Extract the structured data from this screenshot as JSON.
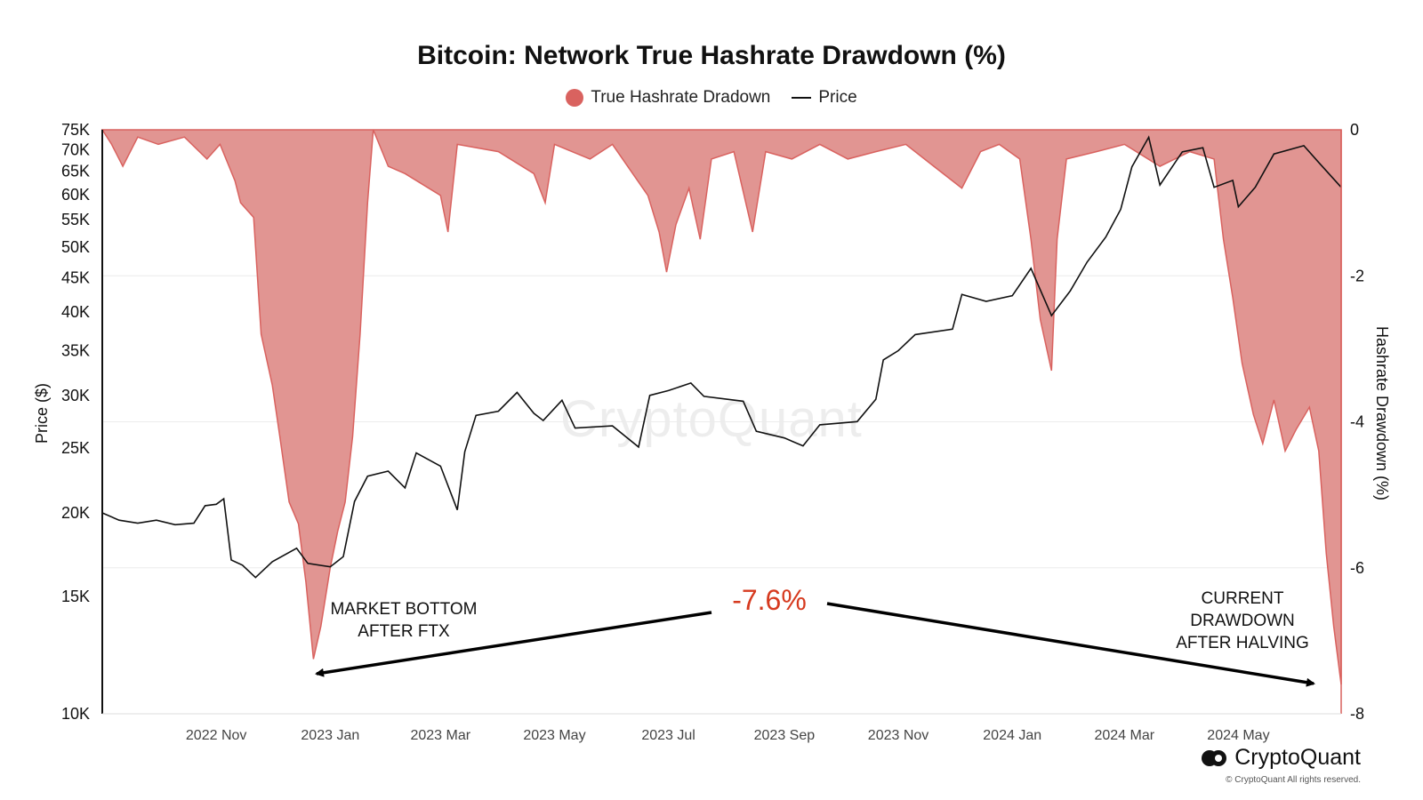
{
  "chart_data": {
    "type": "area+line",
    "title": "Bitcoin: Network True Hashrate Drawdown (%)",
    "legend": [
      "True Hashrate Dradown",
      "Price"
    ],
    "legend_position": "top-center",
    "left_axis": {
      "label": "Price ($)",
      "scale": "log",
      "range": [
        10000,
        75000
      ],
      "ticks": [
        10000,
        15000,
        20000,
        25000,
        30000,
        35000,
        40000,
        45000,
        50000,
        55000,
        60000,
        65000,
        70000,
        75000
      ],
      "tick_labels": [
        "10K",
        "15K",
        "20K",
        "25K",
        "30K",
        "35K",
        "40K",
        "45K",
        "50K",
        "55K",
        "60K",
        "65K",
        "70K",
        "75K"
      ]
    },
    "right_axis": {
      "label": "Hashrate Drawdown (%)",
      "range": [
        -8,
        0
      ],
      "ticks": [
        0,
        -2,
        -4,
        -6,
        -8
      ]
    },
    "x_axis": {
      "range": [
        "2022-09-01",
        "2024-06-25"
      ],
      "ticks": [
        "2022-11-01",
        "2023-01-01",
        "2023-03-01",
        "2023-05-01",
        "2023-07-01",
        "2023-09-01",
        "2023-11-01",
        "2024-01-01",
        "2024-03-01",
        "2024-05-01"
      ],
      "tick_labels": [
        "2022 Nov",
        "2023 Jan",
        "2023 Mar",
        "2023 May",
        "2023 Jul",
        "2023 Sep",
        "2023 Nov",
        "2024 Jan",
        "2024 Mar",
        "2024 May"
      ]
    },
    "grid": "horizontal",
    "colors": {
      "drawdown": "#d9625f",
      "drawdown_fill": "#e19592",
      "price": "#111111",
      "annotation": "#d63a1f"
    },
    "series": [
      {
        "name": "Price",
        "axis": "left",
        "points": [
          [
            "2022-09-01",
            20000
          ],
          [
            "2022-09-10",
            19500
          ],
          [
            "2022-09-20",
            19300
          ],
          [
            "2022-09-30",
            19500
          ],
          [
            "2022-10-10",
            19200
          ],
          [
            "2022-10-20",
            19300
          ],
          [
            "2022-10-26",
            20500
          ],
          [
            "2022-11-01",
            20600
          ],
          [
            "2022-11-05",
            21000
          ],
          [
            "2022-11-09",
            17000
          ],
          [
            "2022-11-15",
            16700
          ],
          [
            "2022-11-22",
            16000
          ],
          [
            "2022-12-01",
            16900
          ],
          [
            "2022-12-14",
            17700
          ],
          [
            "2022-12-20",
            16800
          ],
          [
            "2023-01-01",
            16600
          ],
          [
            "2023-01-08",
            17200
          ],
          [
            "2023-01-14",
            20800
          ],
          [
            "2023-01-21",
            22700
          ],
          [
            "2023-02-01",
            23100
          ],
          [
            "2023-02-10",
            21800
          ],
          [
            "2023-02-16",
            24600
          ],
          [
            "2023-03-01",
            23500
          ],
          [
            "2023-03-10",
            20200
          ],
          [
            "2023-03-14",
            24700
          ],
          [
            "2023-03-20",
            28000
          ],
          [
            "2023-04-01",
            28400
          ],
          [
            "2023-04-11",
            30300
          ],
          [
            "2023-04-20",
            28200
          ],
          [
            "2023-04-25",
            27500
          ],
          [
            "2023-05-05",
            29500
          ],
          [
            "2023-05-12",
            26800
          ],
          [
            "2023-06-01",
            27000
          ],
          [
            "2023-06-15",
            25100
          ],
          [
            "2023-06-21",
            30000
          ],
          [
            "2023-07-01",
            30500
          ],
          [
            "2023-07-13",
            31300
          ],
          [
            "2023-07-20",
            29900
          ],
          [
            "2023-08-10",
            29400
          ],
          [
            "2023-08-17",
            26500
          ],
          [
            "2023-09-01",
            25900
          ],
          [
            "2023-09-11",
            25200
          ],
          [
            "2023-09-20",
            27100
          ],
          [
            "2023-10-10",
            27400
          ],
          [
            "2023-10-20",
            29600
          ],
          [
            "2023-10-24",
            33900
          ],
          [
            "2023-11-01",
            35000
          ],
          [
            "2023-11-10",
            37000
          ],
          [
            "2023-11-30",
            37700
          ],
          [
            "2023-12-05",
            42500
          ],
          [
            "2023-12-18",
            41500
          ],
          [
            "2024-01-01",
            42300
          ],
          [
            "2024-01-11",
            46500
          ],
          [
            "2024-01-22",
            39500
          ],
          [
            "2024-02-01",
            43000
          ],
          [
            "2024-02-10",
            47500
          ],
          [
            "2024-02-20",
            51800
          ],
          [
            "2024-02-28",
            57000
          ],
          [
            "2024-03-05",
            66000
          ],
          [
            "2024-03-14",
            73100
          ],
          [
            "2024-03-20",
            62000
          ],
          [
            "2024-04-01",
            69500
          ],
          [
            "2024-04-12",
            70500
          ],
          [
            "2024-04-18",
            61500
          ],
          [
            "2024-04-28",
            63000
          ],
          [
            "2024-05-01",
            57500
          ],
          [
            "2024-05-10",
            61500
          ],
          [
            "2024-05-20",
            69000
          ],
          [
            "2024-06-05",
            71000
          ],
          [
            "2024-06-13",
            67000
          ],
          [
            "2024-06-25",
            61500
          ]
        ]
      },
      {
        "name": "True Hashrate Dradown",
        "axis": "right",
        "points": [
          [
            "2022-09-01",
            0
          ],
          [
            "2022-09-06",
            -0.2
          ],
          [
            "2022-09-12",
            -0.5
          ],
          [
            "2022-09-20",
            -0.1
          ],
          [
            "2022-10-01",
            -0.2
          ],
          [
            "2022-10-15",
            -0.1
          ],
          [
            "2022-10-27",
            -0.4
          ],
          [
            "2022-11-03",
            -0.2
          ],
          [
            "2022-11-11",
            -0.7
          ],
          [
            "2022-11-14",
            -1.0
          ],
          [
            "2022-11-21",
            -1.2
          ],
          [
            "2022-11-25",
            -2.8
          ],
          [
            "2022-12-01",
            -3.5
          ],
          [
            "2022-12-05",
            -4.2
          ],
          [
            "2022-12-10",
            -5.1
          ],
          [
            "2022-12-15",
            -5.4
          ],
          [
            "2022-12-19",
            -6.2
          ],
          [
            "2022-12-23",
            -7.25
          ],
          [
            "2022-12-27",
            -6.8
          ],
          [
            "2023-01-01",
            -6.0
          ],
          [
            "2023-01-05",
            -5.5
          ],
          [
            "2023-01-09",
            -5.1
          ],
          [
            "2023-01-13",
            -4.2
          ],
          [
            "2023-01-17",
            -2.8
          ],
          [
            "2023-01-21",
            -1.0
          ],
          [
            "2023-01-24",
            0
          ],
          [
            "2023-02-01",
            -0.5
          ],
          [
            "2023-02-10",
            -0.6
          ],
          [
            "2023-03-01",
            -0.9
          ],
          [
            "2023-03-05",
            -1.4
          ],
          [
            "2023-03-10",
            -0.2
          ],
          [
            "2023-04-01",
            -0.3
          ],
          [
            "2023-04-20",
            -0.6
          ],
          [
            "2023-04-26",
            -1.0
          ],
          [
            "2023-05-01",
            -0.2
          ],
          [
            "2023-05-20",
            -0.4
          ],
          [
            "2023-06-01",
            -0.2
          ],
          [
            "2023-06-20",
            -0.9
          ],
          [
            "2023-06-26",
            -1.4
          ],
          [
            "2023-06-30",
            -1.95
          ],
          [
            "2023-07-05",
            -1.3
          ],
          [
            "2023-07-12",
            -0.8
          ],
          [
            "2023-07-18",
            -1.5
          ],
          [
            "2023-07-24",
            -0.4
          ],
          [
            "2023-08-05",
            -0.3
          ],
          [
            "2023-08-15",
            -1.4
          ],
          [
            "2023-08-22",
            -0.3
          ],
          [
            "2023-09-05",
            -0.4
          ],
          [
            "2023-09-20",
            -0.2
          ],
          [
            "2023-10-05",
            -0.4
          ],
          [
            "2023-10-20",
            -0.3
          ],
          [
            "2023-11-05",
            -0.2
          ],
          [
            "2023-11-20",
            -0.5
          ],
          [
            "2023-12-05",
            -0.8
          ],
          [
            "2023-12-15",
            -0.3
          ],
          [
            "2023-12-25",
            -0.2
          ],
          [
            "2024-01-05",
            -0.4
          ],
          [
            "2024-01-11",
            -1.5
          ],
          [
            "2024-01-16",
            -2.6
          ],
          [
            "2024-01-22",
            -3.3
          ],
          [
            "2024-01-25",
            -1.5
          ],
          [
            "2024-01-30",
            -0.4
          ],
          [
            "2024-02-15",
            -0.3
          ],
          [
            "2024-03-01",
            -0.2
          ],
          [
            "2024-03-20",
            -0.5
          ],
          [
            "2024-04-05",
            -0.3
          ],
          [
            "2024-04-18",
            -0.4
          ],
          [
            "2024-04-23",
            -1.5
          ],
          [
            "2024-04-28",
            -2.3
          ],
          [
            "2024-05-03",
            -3.2
          ],
          [
            "2024-05-09",
            -3.9
          ],
          [
            "2024-05-14",
            -4.3
          ],
          [
            "2024-05-20",
            -3.7
          ],
          [
            "2024-05-26",
            -4.4
          ],
          [
            "2024-06-01",
            -4.1
          ],
          [
            "2024-06-08",
            -3.8
          ],
          [
            "2024-06-13",
            -4.4
          ],
          [
            "2024-06-17",
            -5.8
          ],
          [
            "2024-06-21",
            -6.8
          ],
          [
            "2024-06-25",
            -7.6
          ]
        ]
      }
    ],
    "annotations": {
      "left_note": [
        "MARKET BOTTOM",
        "AFTER FTX"
      ],
      "right_note": [
        "CURRENT",
        "DRAWDOWN",
        "AFTER HALVING"
      ],
      "center_value": "-7.6%"
    }
  },
  "watermark": "CryptoQuant",
  "brand": {
    "name": "CryptoQuant",
    "copyright": "© CryptoQuant All rights reserved."
  }
}
